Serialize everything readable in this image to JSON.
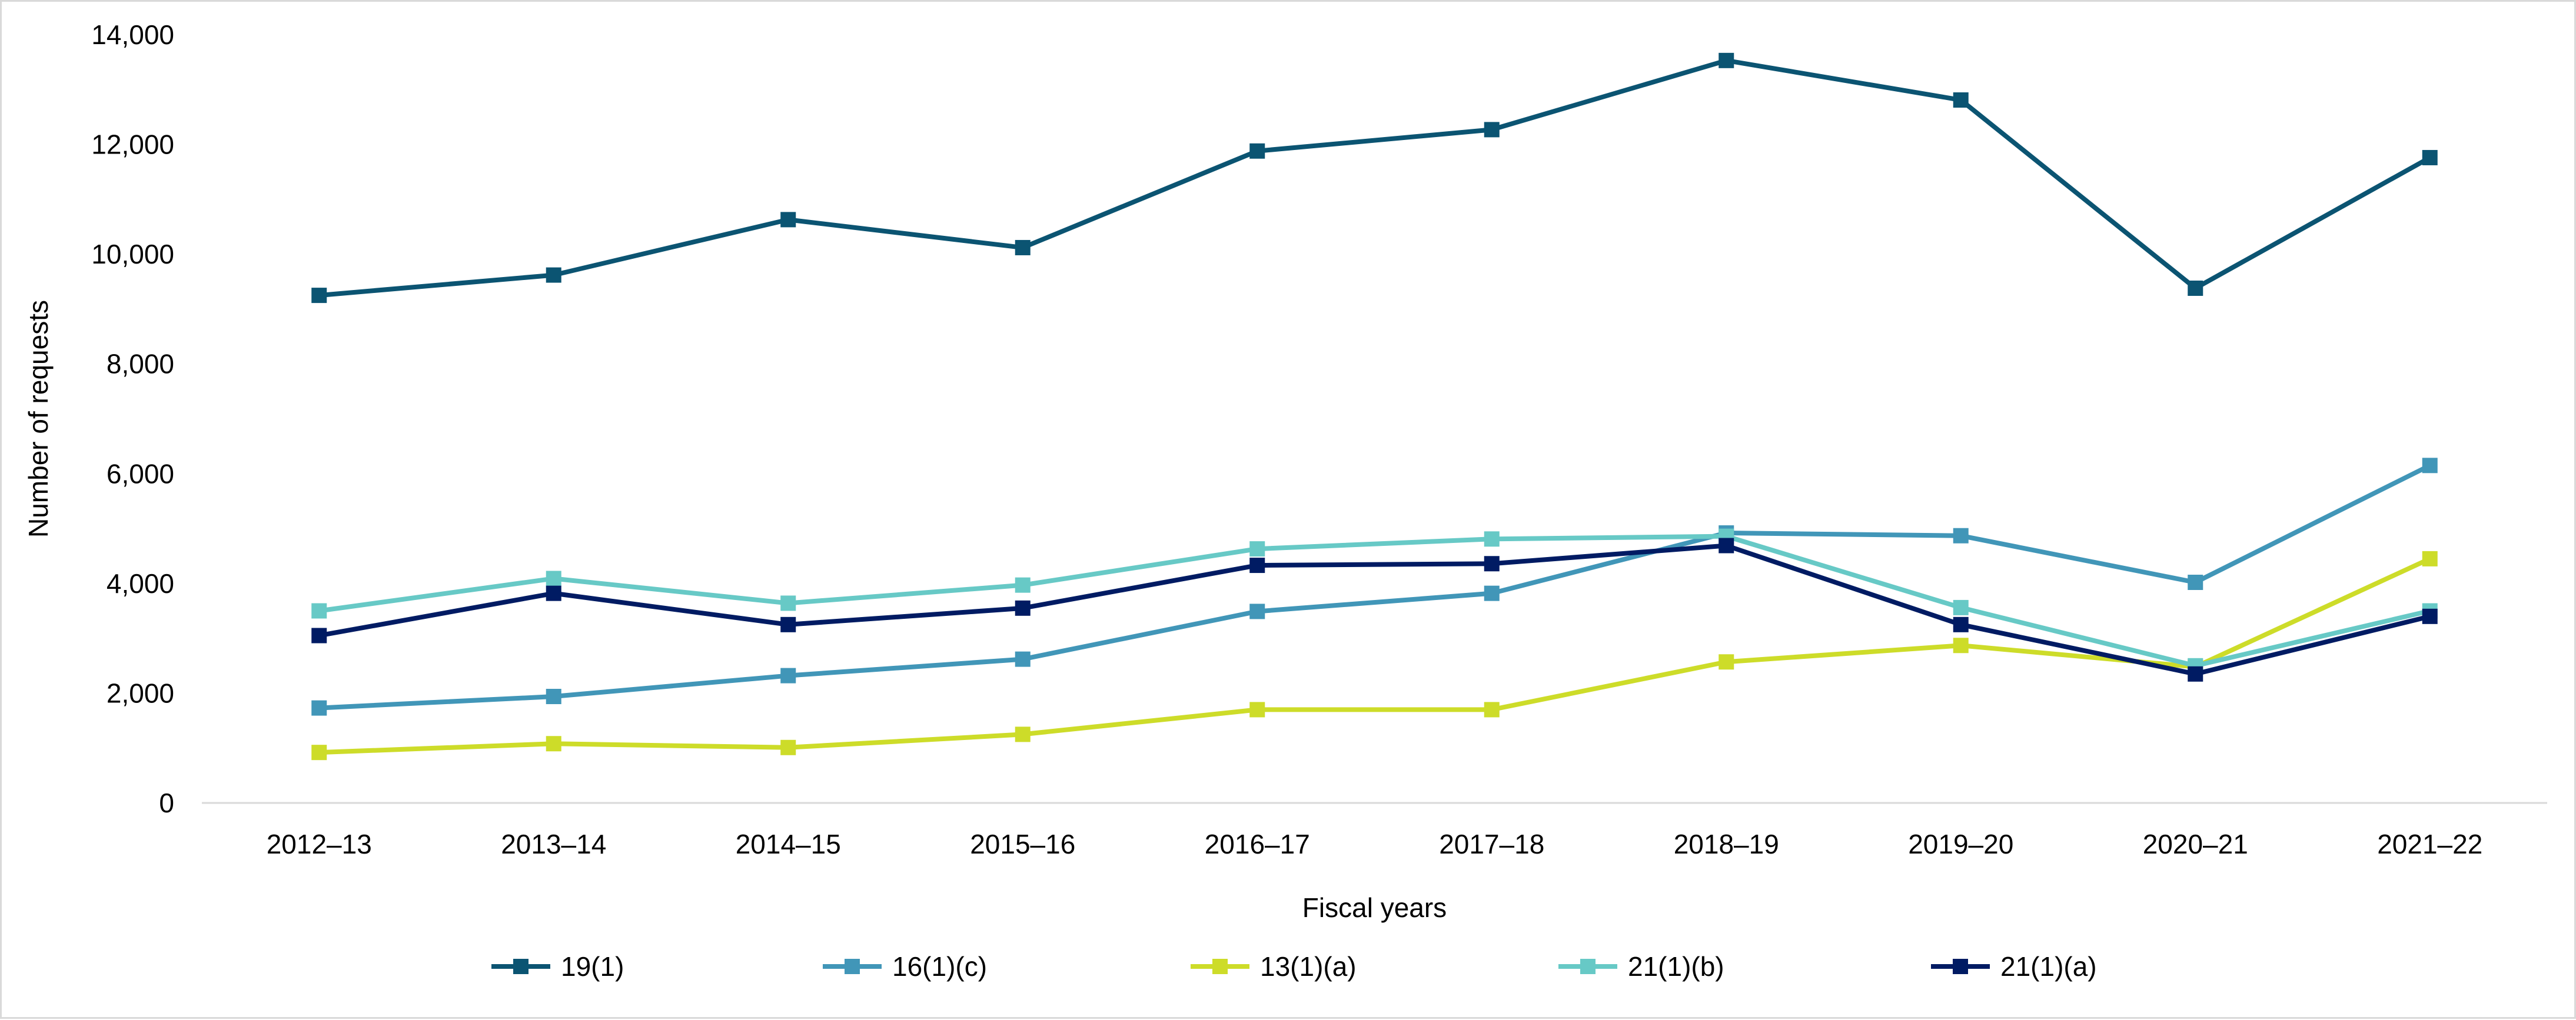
{
  "chart_data": {
    "type": "line",
    "title": "",
    "xlabel": "Fiscal years",
    "ylabel": "Number of requests",
    "ylim": [
      0,
      14000
    ],
    "yticks": [
      0,
      2000,
      4000,
      6000,
      8000,
      10000,
      12000,
      14000
    ],
    "ytick_labels": [
      "0",
      "2,000",
      "4,000",
      "6,000",
      "8,000",
      "10,000",
      "12,000",
      "14,000"
    ],
    "grid": false,
    "legend_position": "bottom",
    "categories": [
      "2012–13",
      "2013–14",
      "2014–15",
      "2015–16",
      "2016–17",
      "2017–18",
      "2018–19",
      "2019–20",
      "2020–21",
      "2021–22"
    ],
    "series": [
      {
        "name": "19(1)",
        "color": "#0b5472",
        "values": [
          9250,
          9620,
          10630,
          10120,
          11880,
          12270,
          13530,
          12810,
          9380,
          11760
        ]
      },
      {
        "name": "16(1)(c)",
        "color": "#4196b8",
        "values": [
          1730,
          1940,
          2320,
          2620,
          3490,
          3820,
          4920,
          4870,
          4020,
          6150
        ]
      },
      {
        "name": "13(1)(a)",
        "color": "#cddc29",
        "values": [
          920,
          1080,
          1010,
          1250,
          1700,
          1700,
          2570,
          2870,
          2480,
          4450
        ]
      },
      {
        "name": "21(1)(b)",
        "color": "#67c9c6",
        "values": [
          3500,
          4090,
          3640,
          3970,
          4630,
          4810,
          4860,
          3560,
          2500,
          3500
        ]
      },
      {
        "name": "21(1)(a)",
        "color": "#001b63",
        "values": [
          3050,
          3820,
          3250,
          3550,
          4330,
          4360,
          4690,
          3250,
          2350,
          3400
        ]
      }
    ]
  }
}
